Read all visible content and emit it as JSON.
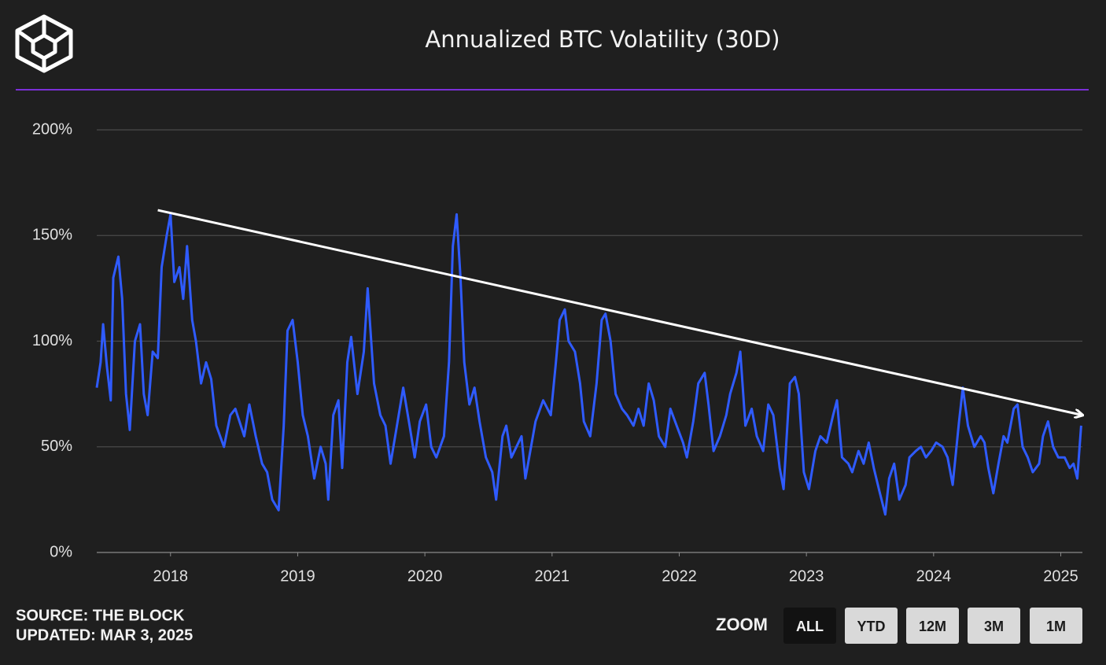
{
  "chart_data": {
    "type": "line",
    "title": "Annualized BTC Volatility (30D)",
    "color": "#2f5bff",
    "grid": true,
    "xlim": [
      2017.42,
      2025.17
    ],
    "xticks": [
      2018,
      2019,
      2020,
      2021,
      2022,
      2023,
      2024,
      2025
    ],
    "ylim": [
      0,
      200
    ],
    "yticks": [
      {
        "value": 0,
        "label": "0%"
      },
      {
        "value": 50,
        "label": "50%"
      },
      {
        "value": 100,
        "label": "100%"
      },
      {
        "value": 150,
        "label": "150%"
      },
      {
        "value": 200,
        "label": "200%"
      }
    ],
    "x": [
      2017.42,
      2017.45,
      2017.47,
      2017.5,
      2017.53,
      2017.55,
      2017.59,
      2017.62,
      2017.65,
      2017.68,
      2017.72,
      2017.76,
      2017.79,
      2017.82,
      2017.86,
      2017.9,
      2017.93,
      2017.97,
      2018.0,
      2018.03,
      2018.07,
      2018.1,
      2018.13,
      2018.17,
      2018.2,
      2018.24,
      2018.28,
      2018.32,
      2018.36,
      2018.42,
      2018.47,
      2018.51,
      2018.58,
      2018.62,
      2018.67,
      2018.72,
      2018.76,
      2018.8,
      2018.85,
      2018.89,
      2018.92,
      2018.96,
      2019.0,
      2019.04,
      2019.08,
      2019.13,
      2019.18,
      2019.22,
      2019.24,
      2019.28,
      2019.32,
      2019.35,
      2019.39,
      2019.42,
      2019.47,
      2019.52,
      2019.55,
      2019.6,
      2019.65,
      2019.69,
      2019.73,
      2019.78,
      2019.83,
      2019.88,
      2019.92,
      2019.96,
      2020.01,
      2020.05,
      2020.09,
      2020.15,
      2020.19,
      2020.22,
      2020.25,
      2020.28,
      2020.31,
      2020.35,
      2020.39,
      2020.43,
      2020.48,
      2020.53,
      2020.56,
      2020.61,
      2020.64,
      2020.68,
      2020.72,
      2020.76,
      2020.79,
      2020.82,
      2020.87,
      2020.93,
      2020.99,
      2021.03,
      2021.06,
      2021.1,
      2021.13,
      2021.18,
      2021.22,
      2021.25,
      2021.3,
      2021.35,
      2021.39,
      2021.42,
      2021.46,
      2021.5,
      2021.55,
      2021.59,
      2021.64,
      2021.68,
      2021.72,
      2021.76,
      2021.8,
      2021.84,
      2021.89,
      2021.93,
      2021.98,
      2022.03,
      2022.06,
      2022.11,
      2022.15,
      2022.2,
      2022.23,
      2022.27,
      2022.32,
      2022.37,
      2022.4,
      2022.45,
      2022.48,
      2022.52,
      2022.57,
      2022.61,
      2022.66,
      2022.7,
      2022.74,
      2022.79,
      2022.82,
      2022.87,
      2022.91,
      2022.94,
      2022.98,
      2023.02,
      2023.07,
      2023.11,
      2023.16,
      2023.21,
      2023.24,
      2023.28,
      2023.33,
      2023.36,
      2023.41,
      2023.45,
      2023.49,
      2023.53,
      2023.57,
      2023.62,
      2023.65,
      2023.69,
      2023.73,
      2023.78,
      2023.81,
      2023.86,
      2023.9,
      2023.94,
      2023.98,
      2024.02,
      2024.07,
      2024.11,
      2024.15,
      2024.2,
      2024.23,
      2024.27,
      2024.32,
      2024.37,
      2024.4,
      2024.43,
      2024.47,
      2024.51,
      2024.55,
      2024.58,
      2024.63,
      2024.66,
      2024.7,
      2024.74,
      2024.78,
      2024.83,
      2024.86,
      2024.9,
      2024.94,
      2024.98,
      2025.03,
      2025.07,
      2025.1,
      2025.13,
      2025.16
    ],
    "values": [
      78,
      90,
      108,
      88,
      72,
      130,
      140,
      120,
      75,
      58,
      100,
      108,
      75,
      65,
      95,
      92,
      135,
      150,
      160,
      128,
      135,
      120,
      145,
      110,
      100,
      80,
      90,
      82,
      60,
      50,
      65,
      68,
      55,
      70,
      55,
      42,
      38,
      25,
      20,
      60,
      105,
      110,
      90,
      65,
      55,
      35,
      50,
      42,
      25,
      65,
      72,
      40,
      90,
      102,
      75,
      95,
      125,
      80,
      65,
      60,
      42,
      60,
      78,
      60,
      45,
      62,
      70,
      50,
      45,
      55,
      90,
      145,
      160,
      130,
      90,
      70,
      78,
      62,
      45,
      38,
      25,
      55,
      60,
      45,
      50,
      55,
      35,
      45,
      62,
      72,
      65,
      90,
      110,
      115,
      100,
      95,
      80,
      62,
      55,
      80,
      110,
      113,
      100,
      75,
      68,
      65,
      60,
      68,
      60,
      80,
      72,
      55,
      50,
      68,
      60,
      52,
      45,
      62,
      80,
      85,
      70,
      48,
      55,
      65,
      75,
      85,
      95,
      60,
      68,
      55,
      48,
      70,
      65,
      40,
      30,
      80,
      83,
      75,
      38,
      30,
      48,
      55,
      52,
      65,
      72,
      45,
      42,
      38,
      48,
      42,
      52,
      40,
      30,
      18,
      35,
      42,
      25,
      32,
      45,
      48,
      50,
      45,
      48,
      52,
      50,
      45,
      32,
      62,
      78,
      60,
      50,
      55,
      52,
      40,
      28,
      42,
      55,
      52,
      68,
      70,
      50,
      45,
      38,
      42,
      55,
      62,
      50,
      45,
      45,
      40,
      42,
      35,
      60
    ],
    "trend": {
      "x": [
        2017.9,
        2025.17
      ],
      "y": [
        162,
        65
      ]
    }
  },
  "footer": {
    "source": "SOURCE: THE BLOCK",
    "updated": "UPDATED: MAR 3, 2025"
  },
  "zoom": {
    "label": "ZOOM",
    "buttons": [
      "ALL",
      "YTD",
      "12M",
      "3M",
      "1M"
    ],
    "selected": "ALL"
  }
}
